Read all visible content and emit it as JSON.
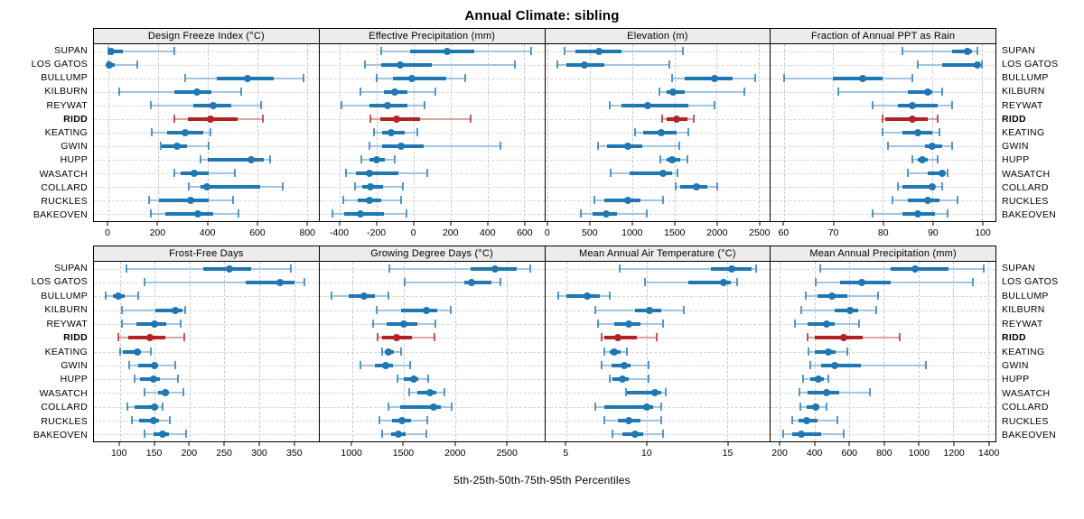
{
  "title": "Annual Climate: sibling",
  "footer": "5th-25th-50th-75th-95th Percentiles",
  "percentiles": [
    "5th",
    "25th",
    "50th",
    "75th",
    "95th"
  ],
  "stations": [
    "SUPAN",
    "LOS GATOS",
    "BULLUMP",
    "KILBURN",
    "REYWAT",
    "RIDD",
    "KEATING",
    "GWIN",
    "HUPP",
    "WASATCH",
    "COLLARD",
    "RUCKLES",
    "BAKEOVEN"
  ],
  "station_highlight": "RIDD",
  "colors": {
    "series_main": "#1f77b4",
    "series_light": "#a3c6e0",
    "highlight_main": "#b22222",
    "highlight_light": "#dba39e",
    "panel_header_bg": "#ececec",
    "grid": "#c9c9c9",
    "border": "#000000"
  },
  "chart_data": [
    {
      "title": "Design Freeze Index (°C)",
      "type": "scatter",
      "subtype": "horizontal-percentile-dotplot",
      "grid": {
        "row": 0,
        "col": 0
      },
      "percentiles": [
        5,
        25,
        50,
        75,
        95
      ],
      "xlim": [
        -58,
        846
      ],
      "xticks": [
        0,
        200,
        400,
        600,
        800
      ],
      "values": {
        "SUPAN": [
          0,
          0,
          10,
          60,
          265
        ],
        "LOS GATOS": [
          0,
          0,
          5,
          25,
          115
        ],
        "BULLUMP": [
          310,
          435,
          560,
          665,
          785
        ],
        "KILBURN": [
          45,
          265,
          355,
          415,
          535
        ],
        "REYWAT": [
          170,
          340,
          420,
          495,
          615
        ],
        "RIDD": [
          265,
          320,
          410,
          520,
          620
        ],
        "KEATING": [
          175,
          235,
          310,
          380,
          410
        ],
        "GWIN": [
          210,
          215,
          275,
          315,
          405
        ],
        "HUPP": [
          370,
          400,
          575,
          625,
          650
        ],
        "WASATCH": [
          265,
          290,
          345,
          405,
          510
        ],
        "COLLARD": [
          325,
          370,
          395,
          610,
          700
        ],
        "RUCKLES": [
          165,
          205,
          330,
          405,
          500
        ],
        "BAKEOVEN": [
          170,
          230,
          360,
          420,
          525
        ]
      }
    },
    {
      "title": "Effective Precipitation (mm)",
      "type": "scatter",
      "subtype": "horizontal-percentile-dotplot",
      "grid": {
        "row": 0,
        "col": 1
      },
      "percentiles": [
        5,
        25,
        50,
        75,
        95
      ],
      "xlim": [
        -510,
        708
      ],
      "xticks": [
        -400,
        -200,
        0,
        200,
        400,
        600
      ],
      "values": {
        "SUPAN": [
          -175,
          -20,
          180,
          330,
          635
        ],
        "LOS GATOS": [
          -265,
          -175,
          -75,
          100,
          550
        ],
        "BULLUMP": [
          -200,
          -110,
          -10,
          175,
          280
        ],
        "KILBURN": [
          -290,
          -160,
          -100,
          -35,
          120
        ],
        "REYWAT": [
          -390,
          -240,
          -140,
          -35,
          60
        ],
        "RIDD": [
          -235,
          -180,
          -95,
          35,
          310
        ],
        "KEATING": [
          -215,
          -170,
          -120,
          -50,
          20
        ],
        "GWIN": [
          -240,
          -170,
          -70,
          55,
          470
        ],
        "HUPP": [
          -285,
          -240,
          -200,
          -155,
          -100
        ],
        "WASATCH": [
          -365,
          -315,
          -240,
          -85,
          75
        ],
        "COLLARD": [
          -320,
          -280,
          -235,
          -165,
          -60
        ],
        "RUCKLES": [
          -380,
          -305,
          -240,
          -175,
          -70
        ],
        "BAKEOVEN": [
          -440,
          -375,
          -290,
          -160,
          -40
        ]
      }
    },
    {
      "title": "Elevation (m)",
      "type": "scatter",
      "subtype": "horizontal-percentile-dotplot",
      "grid": {
        "row": 0,
        "col": 2
      },
      "percentiles": [
        5,
        25,
        50,
        75,
        95
      ],
      "xlim": [
        -30,
        2630
      ],
      "xticks": [
        0,
        500,
        1000,
        1500,
        2000,
        2500
      ],
      "values": {
        "SUPAN": [
          195,
          330,
          610,
          870,
          1600
        ],
        "LOS GATOS": [
          115,
          225,
          435,
          670,
          1445
        ],
        "BULLUMP": [
          1470,
          1620,
          1970,
          2185,
          2455
        ],
        "KILBURN": [
          1320,
          1410,
          1480,
          1625,
          2330
        ],
        "REYWAT": [
          730,
          870,
          1180,
          1670,
          1975
        ],
        "RIDD": [
          1350,
          1410,
          1525,
          1650,
          1730
        ],
        "KEATING": [
          1030,
          1125,
          1340,
          1530,
          1660
        ],
        "GWIN": [
          600,
          705,
          945,
          1125,
          1560
        ],
        "HUPP": [
          1330,
          1405,
          1470,
          1565,
          1650
        ],
        "WASATCH": [
          745,
          965,
          1365,
          1470,
          1535
        ],
        "COLLARD": [
          1520,
          1570,
          1760,
          1885,
          2005
        ],
        "RUCKLES": [
          555,
          670,
          945,
          1100,
          1365
        ],
        "BAKEOVEN": [
          395,
          535,
          690,
          820,
          1170
        ]
      }
    },
    {
      "title": "Fraction of Annual PPT as Rain",
      "type": "scatter",
      "subtype": "horizontal-percentile-dotplot",
      "grid": {
        "row": 0,
        "col": 3
      },
      "percentiles": [
        5,
        25,
        50,
        75,
        95
      ],
      "xlim": [
        57.4,
        102.7
      ],
      "xticks": [
        60,
        70,
        80,
        90,
        100
      ],
      "values": {
        "SUPAN": [
          84,
          94,
          97,
          98,
          99
        ],
        "LOS GATOS": [
          87,
          92,
          99,
          99.5,
          100
        ],
        "BULLUMP": [
          60,
          70,
          76,
          80,
          86
        ],
        "KILBURN": [
          71,
          85,
          89,
          90,
          92
        ],
        "REYWAT": [
          78,
          83,
          86,
          91,
          94
        ],
        "RIDD": [
          80,
          80.5,
          86,
          89,
          91
        ],
        "KEATING": [
          80,
          84,
          87,
          90,
          91.5
        ],
        "GWIN": [
          81,
          88.5,
          90,
          92,
          94
        ],
        "HUPP": [
          86,
          87,
          88,
          89,
          91
        ],
        "WASATCH": [
          85,
          89,
          92,
          92.5,
          93
        ],
        "COLLARD": [
          83,
          84,
          90,
          90.5,
          92
        ],
        "RUCKLES": [
          82,
          85,
          89,
          91.5,
          95
        ],
        "BAKEOVEN": [
          78,
          84,
          87,
          90.5,
          93
        ]
      }
    },
    {
      "title": "Frost-Free Days",
      "type": "scatter",
      "subtype": "horizontal-percentile-dotplot",
      "grid": {
        "row": 1,
        "col": 0
      },
      "percentiles": [
        5,
        25,
        50,
        75,
        95
      ],
      "xlim": [
        63,
        385
      ],
      "xticks": [
        100,
        150,
        200,
        250,
        300,
        350
      ],
      "values": {
        "SUPAN": [
          110,
          220,
          257,
          288,
          345
        ],
        "LOS GATOS": [
          135,
          280,
          330,
          350,
          365
        ],
        "BULLUMP": [
          80,
          90,
          98,
          107,
          127
        ],
        "KILBURN": [
          103,
          151,
          180,
          190,
          194
        ],
        "REYWAT": [
          103,
          124,
          150,
          166,
          187
        ],
        "RIDD": [
          98,
          112,
          143,
          165,
          193
        ],
        "KEATING": [
          101,
          104,
          125,
          130,
          144
        ],
        "GWIN": [
          113,
          126,
          150,
          155,
          179
        ],
        "HUPP": [
          121,
          129,
          148,
          158,
          183
        ],
        "WASATCH": [
          136,
          155,
          165,
          171,
          191
        ],
        "COLLARD": [
          111,
          121,
          150,
          155,
          161
        ],
        "RUCKLES": [
          118,
          128,
          148,
          156,
          172
        ],
        "BAKEOVEN": [
          136,
          148,
          162,
          171,
          195
        ]
      }
    },
    {
      "title": "Growing Degree Days (°C)",
      "type": "scatter",
      "subtype": "horizontal-percentile-dotplot",
      "grid": {
        "row": 1,
        "col": 1
      },
      "percentiles": [
        5,
        25,
        50,
        75,
        95
      ],
      "xlim": [
        685,
        2865
      ],
      "xticks": [
        1000,
        1500,
        2000,
        2500
      ],
      "values": {
        "SUPAN": [
          1360,
          2150,
          2390,
          2595,
          2725
        ],
        "LOS GATOS": [
          1515,
          2090,
          2160,
          2355,
          2440
        ],
        "BULLUMP": [
          805,
          965,
          1120,
          1225,
          1350
        ],
        "KILBURN": [
          1235,
          1475,
          1725,
          1830,
          1955
        ],
        "REYWAT": [
          1200,
          1335,
          1500,
          1630,
          1810
        ],
        "RIDD": [
          1245,
          1290,
          1435,
          1580,
          1800
        ],
        "KEATING": [
          1290,
          1320,
          1350,
          1405,
          1480
        ],
        "GWIN": [
          1085,
          1225,
          1330,
          1400,
          1560
        ],
        "HUPP": [
          1440,
          1500,
          1595,
          1640,
          1735
        ],
        "WASATCH": [
          1555,
          1630,
          1755,
          1815,
          1900
        ],
        "COLLARD": [
          1355,
          1465,
          1795,
          1865,
          1965
        ],
        "RUCKLES": [
          1265,
          1385,
          1485,
          1575,
          1730
        ],
        "BAKEOVEN": [
          1290,
          1380,
          1450,
          1520,
          1720
        ]
      }
    },
    {
      "title": "Mean Annual Air Temperature (°C)",
      "type": "scatter",
      "subtype": "horizontal-percentile-dotplot",
      "grid": {
        "row": 1,
        "col": 2
      },
      "percentiles": [
        5,
        25,
        50,
        75,
        95
      ],
      "xlim": [
        3.7,
        17.65
      ],
      "xticks": [
        5,
        10,
        15
      ],
      "values": {
        "SUPAN": [
          8.3,
          14.0,
          15.3,
          16.5,
          16.8
        ],
        "LOS GATOS": [
          9.9,
          12.6,
          14.8,
          15.2,
          15.6
        ],
        "BULLUMP": [
          4.5,
          5.0,
          6.3,
          7.1,
          7.7
        ],
        "KILBURN": [
          6.8,
          9.3,
          10.2,
          10.9,
          12.3
        ],
        "REYWAT": [
          7.0,
          8.0,
          8.9,
          9.6,
          11.0
        ],
        "RIDD": [
          7.2,
          7.4,
          8.2,
          9.4,
          10.6
        ],
        "KEATING": [
          7.4,
          7.7,
          8.0,
          8.4,
          8.8
        ],
        "GWIN": [
          7.2,
          7.8,
          8.6,
          9.0,
          10.1
        ],
        "HUPP": [
          7.7,
          7.9,
          8.5,
          8.9,
          10.1
        ],
        "WASATCH": [
          8.7,
          8.8,
          10.5,
          10.9,
          11.2
        ],
        "COLLARD": [
          6.8,
          7.4,
          10.0,
          10.4,
          10.9
        ],
        "RUCKLES": [
          7.4,
          8.2,
          8.9,
          9.6,
          10.9
        ],
        "BAKEOVEN": [
          7.9,
          8.5,
          9.3,
          9.8,
          11.0
        ]
      }
    },
    {
      "title": "Mean Annual Precipitation (mm)",
      "type": "scatter",
      "subtype": "horizontal-percentile-dotplot",
      "grid": {
        "row": 1,
        "col": 3
      },
      "percentiles": [
        5,
        25,
        50,
        75,
        95
      ],
      "xlim": [
        148,
        1443
      ],
      "xticks": [
        200,
        400,
        600,
        800,
        1000,
        1200,
        1400
      ],
      "values": {
        "SUPAN": [
          435,
          840,
          980,
          1170,
          1375
        ],
        "LOS GATOS": [
          405,
          550,
          670,
          840,
          1315
        ],
        "BULLUMP": [
          350,
          415,
          500,
          590,
          765
        ],
        "KILBURN": [
          325,
          515,
          605,
          650,
          755
        ],
        "REYWAT": [
          285,
          360,
          470,
          515,
          655
        ],
        "RIDD": [
          360,
          400,
          570,
          680,
          890
        ],
        "KEATING": [
          365,
          400,
          480,
          520,
          590
        ],
        "GWIN": [
          375,
          440,
          515,
          665,
          1040
        ],
        "HUPP": [
          335,
          375,
          425,
          455,
          480
        ],
        "WASATCH": [
          315,
          360,
          470,
          540,
          720
        ],
        "COLLARD": [
          320,
          355,
          405,
          430,
          470
        ],
        "RUCKLES": [
          270,
          310,
          355,
          420,
          530
        ],
        "BAKEOVEN": [
          220,
          270,
          325,
          440,
          570
        ]
      }
    }
  ]
}
